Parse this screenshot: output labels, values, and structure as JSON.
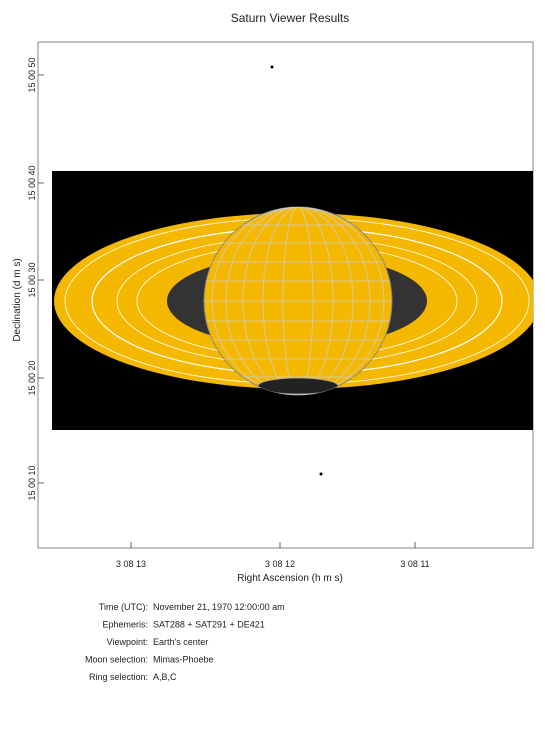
{
  "title": "Saturn Viewer Results",
  "plot": {
    "x_label": "Right Ascension (h m s)",
    "y_label": "Declination (d m s)",
    "x_ticks": [
      "3 08 13",
      "3 08 12",
      "3 08 11"
    ],
    "y_ticks": [
      "15 00 50",
      "15 00 40",
      "15 00 30",
      "15 00 20",
      "15 00 10"
    ]
  },
  "details": [
    {
      "label": "Time (UTC):",
      "value": "November 21, 1970 12:00:00 am"
    },
    {
      "label": "Ephemeris:",
      "value": "SAT288 + SAT291 + DE421"
    },
    {
      "label": "Viewpoint:",
      "value": "Earth's center"
    },
    {
      "label": "Moon selection:",
      "value": "Mimas-Phoebe"
    },
    {
      "label": "Ring selection:",
      "value": "A,B,C"
    }
  ]
}
